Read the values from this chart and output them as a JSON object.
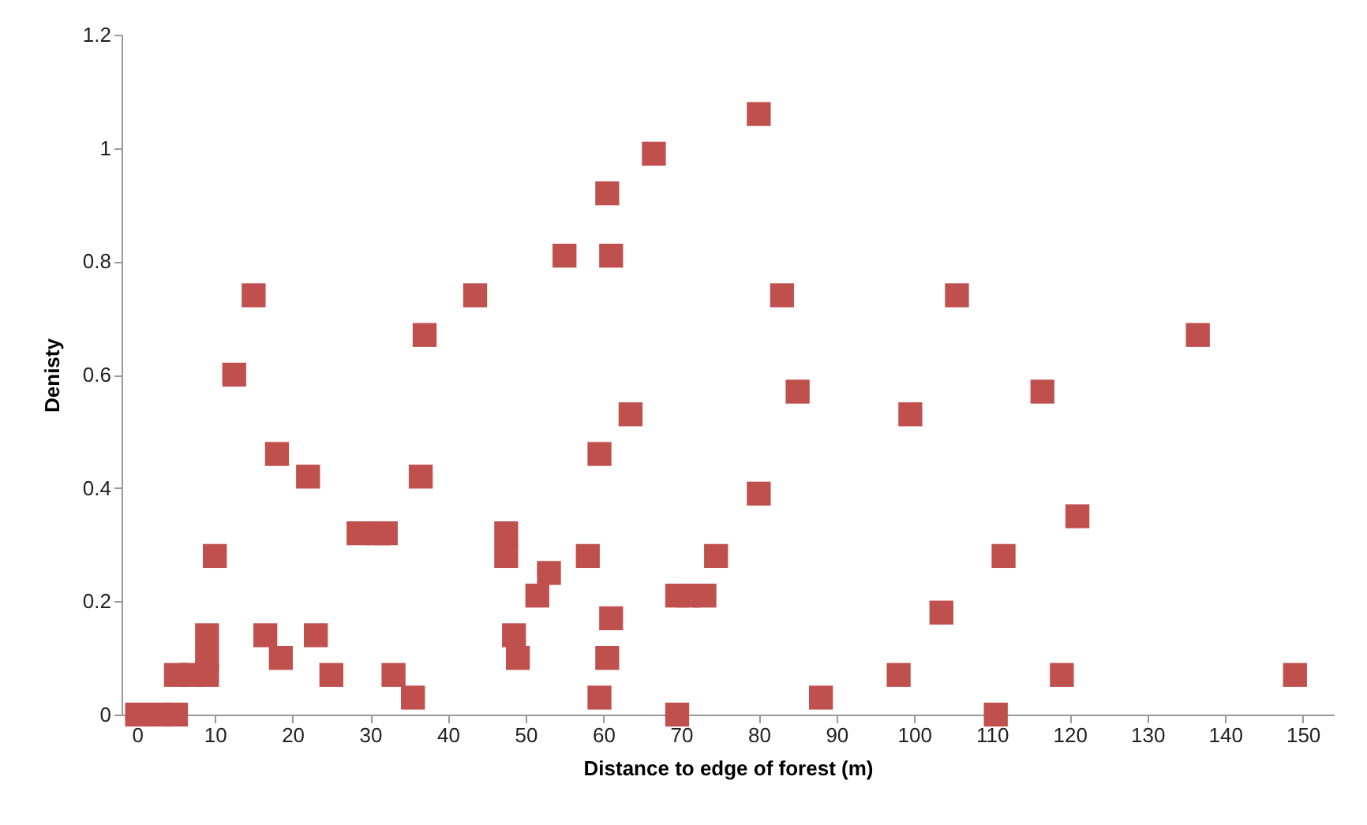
{
  "chart_data": {
    "type": "scatter",
    "xlabel": "Distance to edge of forest (m)",
    "ylabel": "Denisty",
    "x": [
      0,
      3,
      5,
      5,
      7,
      9,
      9,
      9,
      10,
      12.5,
      15,
      16.5,
      18.5,
      18,
      22,
      23,
      25,
      28.5,
      31,
      32,
      33,
      35.5,
      37,
      36.5,
      43.5,
      47.5,
      47.5,
      48.5,
      49,
      51.5,
      53,
      55,
      58,
      59.5,
      60.5,
      59.5,
      60.5,
      61,
      61,
      63.5,
      66.5,
      69.5,
      69.5,
      71,
      73,
      74.5,
      80,
      80,
      83,
      85,
      88,
      98,
      99.5,
      103.5,
      105.5,
      110.5,
      111.5,
      116.5,
      119,
      121,
      136.5,
      149
    ],
    "series": [
      {
        "color": "#c0504d",
        "values": [
          0,
          0,
          0,
          0.07,
          0.07,
          0.07,
          0.14,
          0.1,
          0.28,
          0.6,
          0.74,
          0.14,
          0.1,
          0.46,
          0.42,
          0.14,
          0.07,
          0.32,
          0.32,
          0.32,
          0.07,
          0.03,
          0.67,
          0.42,
          0.74,
          0.32,
          0.28,
          0.14,
          0.1,
          0.21,
          0.25,
          0.81,
          0.28,
          0.03,
          0.1,
          0.46,
          0.92,
          0.81,
          0.17,
          0.53,
          0.99,
          0.21,
          0,
          0.21,
          0.21,
          0.28,
          0.39,
          1.06,
          0.74,
          0.57,
          0.03,
          0.07,
          0.53,
          0.18,
          0.74,
          0,
          0.28,
          0.57,
          0.07,
          0.35,
          0.67,
          0.07
        ]
      }
    ],
    "xlim": [
      -2,
      154
    ],
    "xticks": [
      0,
      10,
      20,
      30,
      40,
      50,
      60,
      70,
      80,
      90,
      100,
      110,
      120,
      130,
      140,
      150
    ],
    "ylim": [
      0,
      1.2
    ],
    "yticks": [
      0,
      0.2,
      0.4,
      0.6,
      0.8,
      1,
      1.2
    ],
    "marker": "square",
    "grid": false,
    "legend": false
  }
}
